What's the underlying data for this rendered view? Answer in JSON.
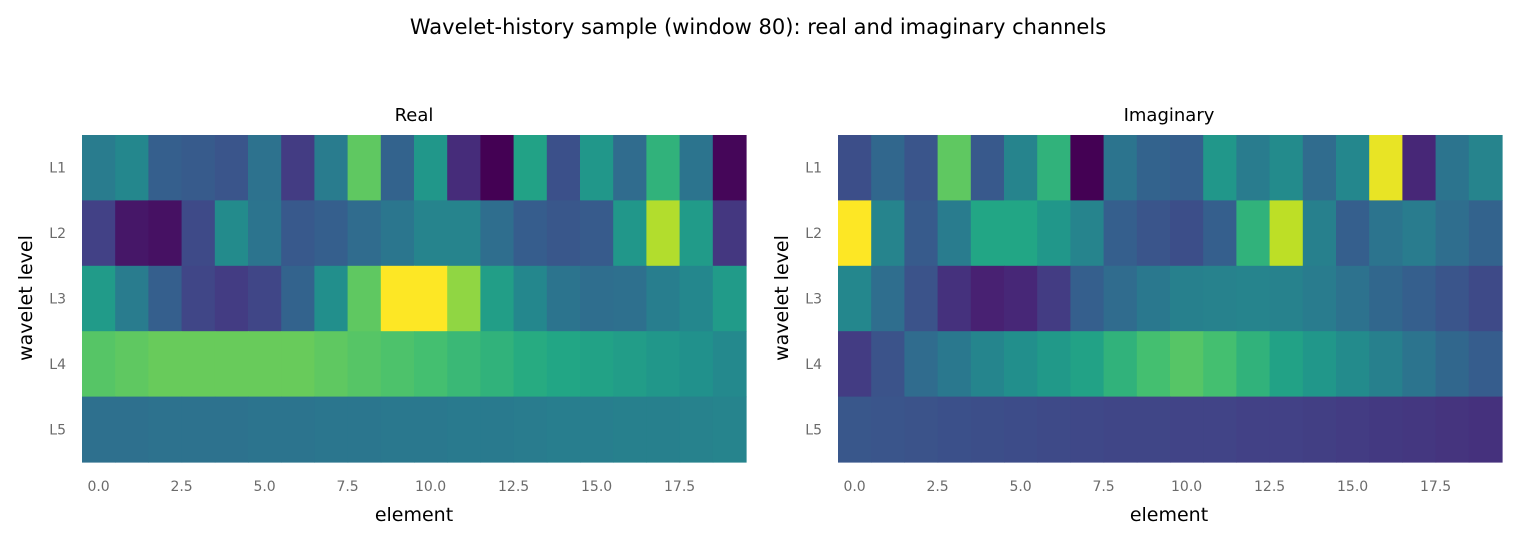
{
  "figure": {
    "title": "Wavelet-history sample (window 80): real and imaginary channels"
  },
  "chart_data": [
    {
      "type": "heatmap",
      "title": "Real",
      "xlabel": "element",
      "ylabel": "wavelet level",
      "rows": [
        "L1",
        "L2",
        "L3",
        "L4",
        "L5"
      ],
      "x": [
        0,
        1,
        2,
        3,
        4,
        5,
        6,
        7,
        8,
        9,
        10,
        11,
        12,
        13,
        14,
        15,
        16,
        17,
        18,
        19
      ],
      "xlim": [
        -0.5,
        19.5
      ],
      "xticks": [
        "0.0",
        "2.5",
        "5.0",
        "7.5",
        "10.0",
        "12.5",
        "15.0",
        "17.5"
      ],
      "xtick_values": [
        0,
        2.5,
        5,
        7.5,
        10,
        12.5,
        15,
        17.5
      ],
      "colormap": "viridis",
      "grid": false,
      "values": [
        [
          0.52,
          0.58,
          0.38,
          0.36,
          0.33,
          0.47,
          0.22,
          0.52,
          0.85,
          0.4,
          0.66,
          0.16,
          0.0,
          0.72,
          0.31,
          0.66,
          0.44,
          0.78,
          0.48,
          0.02
        ],
        [
          0.24,
          0.08,
          0.06,
          0.28,
          0.6,
          0.48,
          0.35,
          0.38,
          0.44,
          0.49,
          0.56,
          0.56,
          0.45,
          0.37,
          0.34,
          0.36,
          0.66,
          0.93,
          0.68,
          0.2
        ],
        [
          0.68,
          0.52,
          0.38,
          0.26,
          0.22,
          0.26,
          0.4,
          0.62,
          0.85,
          1.0,
          1.0,
          0.9,
          0.7,
          0.58,
          0.48,
          0.45,
          0.46,
          0.53,
          0.58,
          0.68
        ],
        [
          0.84,
          0.85,
          0.86,
          0.86,
          0.86,
          0.86,
          0.86,
          0.85,
          0.84,
          0.83,
          0.82,
          0.8,
          0.78,
          0.76,
          0.74,
          0.72,
          0.69,
          0.66,
          0.63,
          0.59
        ],
        [
          0.46,
          0.46,
          0.47,
          0.47,
          0.47,
          0.48,
          0.48,
          0.49,
          0.49,
          0.5,
          0.5,
          0.51,
          0.51,
          0.52,
          0.53,
          0.53,
          0.54,
          0.54,
          0.55,
          0.56
        ]
      ]
    },
    {
      "type": "heatmap",
      "title": "Imaginary",
      "xlabel": "element",
      "ylabel": "wavelet level",
      "rows": [
        "L1",
        "L2",
        "L3",
        "L4",
        "L5"
      ],
      "x": [
        0,
        1,
        2,
        3,
        4,
        5,
        6,
        7,
        8,
        9,
        10,
        11,
        12,
        13,
        14,
        15,
        16,
        17,
        18,
        19
      ],
      "xlim": [
        -0.5,
        19.5
      ],
      "xticks": [
        "0.0",
        "2.5",
        "5.0",
        "7.5",
        "10.0",
        "12.5",
        "15.0",
        "17.5"
      ],
      "xtick_values": [
        0,
        2.5,
        5,
        7.5,
        10,
        12.5,
        15,
        17.5
      ],
      "colormap": "viridis",
      "grid": false,
      "values": [
        [
          0.3,
          0.42,
          0.33,
          0.85,
          0.35,
          0.56,
          0.78,
          0.0,
          0.48,
          0.4,
          0.38,
          0.66,
          0.52,
          0.6,
          0.44,
          0.58,
          0.98,
          0.14,
          0.48,
          0.56
        ],
        [
          1.0,
          0.56,
          0.36,
          0.52,
          0.74,
          0.74,
          0.66,
          0.56,
          0.38,
          0.33,
          0.3,
          0.38,
          0.78,
          0.94,
          0.54,
          0.38,
          0.48,
          0.52,
          0.45,
          0.4
        ],
        [
          0.58,
          0.45,
          0.32,
          0.18,
          0.12,
          0.14,
          0.22,
          0.38,
          0.44,
          0.5,
          0.54,
          0.55,
          0.56,
          0.55,
          0.52,
          0.47,
          0.42,
          0.38,
          0.33,
          0.28
        ],
        [
          0.22,
          0.32,
          0.44,
          0.5,
          0.57,
          0.62,
          0.67,
          0.72,
          0.78,
          0.82,
          0.84,
          0.82,
          0.78,
          0.72,
          0.66,
          0.6,
          0.54,
          0.48,
          0.42,
          0.37
        ],
        [
          0.34,
          0.33,
          0.32,
          0.31,
          0.3,
          0.29,
          0.28,
          0.27,
          0.26,
          0.26,
          0.25,
          0.25,
          0.24,
          0.24,
          0.23,
          0.22,
          0.21,
          0.2,
          0.19,
          0.18
        ]
      ]
    }
  ]
}
